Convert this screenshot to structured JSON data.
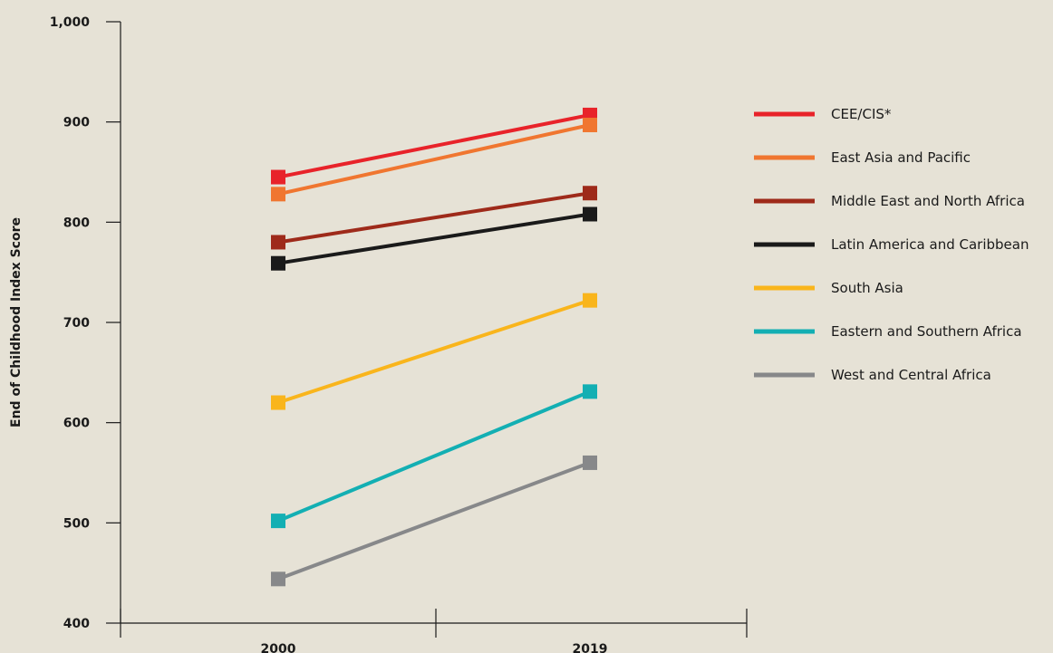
{
  "chart_data": {
    "type": "line",
    "title": "",
    "xlabel": "",
    "ylabel": "End of Childhood Index Score",
    "categories": [
      "2000",
      "2019"
    ],
    "ylim": [
      400,
      1000
    ],
    "yticks": [
      400,
      500,
      600,
      700,
      800,
      900,
      1000
    ],
    "ytick_labels": [
      "400",
      "500",
      "600",
      "700",
      "800",
      "900",
      "1,000"
    ],
    "grid": false,
    "legend_position": "right",
    "marker": "square",
    "series": [
      {
        "name": "CEE/CIS*",
        "color": "#e8232a",
        "values": [
          845,
          907
        ]
      },
      {
        "name": "East Asia and Pacific",
        "color": "#f07630",
        "values": [
          828,
          897
        ]
      },
      {
        "name": "Middle East and North Africa",
        "color": "#9e2a1a",
        "values": [
          780,
          829
        ]
      },
      {
        "name": "Latin America and Caribbean",
        "color": "#1a1a1a",
        "values": [
          759,
          808
        ]
      },
      {
        "name": "South Asia",
        "color": "#f9b51c",
        "values": [
          620,
          722
        ]
      },
      {
        "name": "Eastern and Southern Africa",
        "color": "#13afb3",
        "values": [
          502,
          631
        ]
      },
      {
        "name": "West and Central Africa",
        "color": "#87888a",
        "values": [
          444,
          560
        ]
      }
    ]
  }
}
